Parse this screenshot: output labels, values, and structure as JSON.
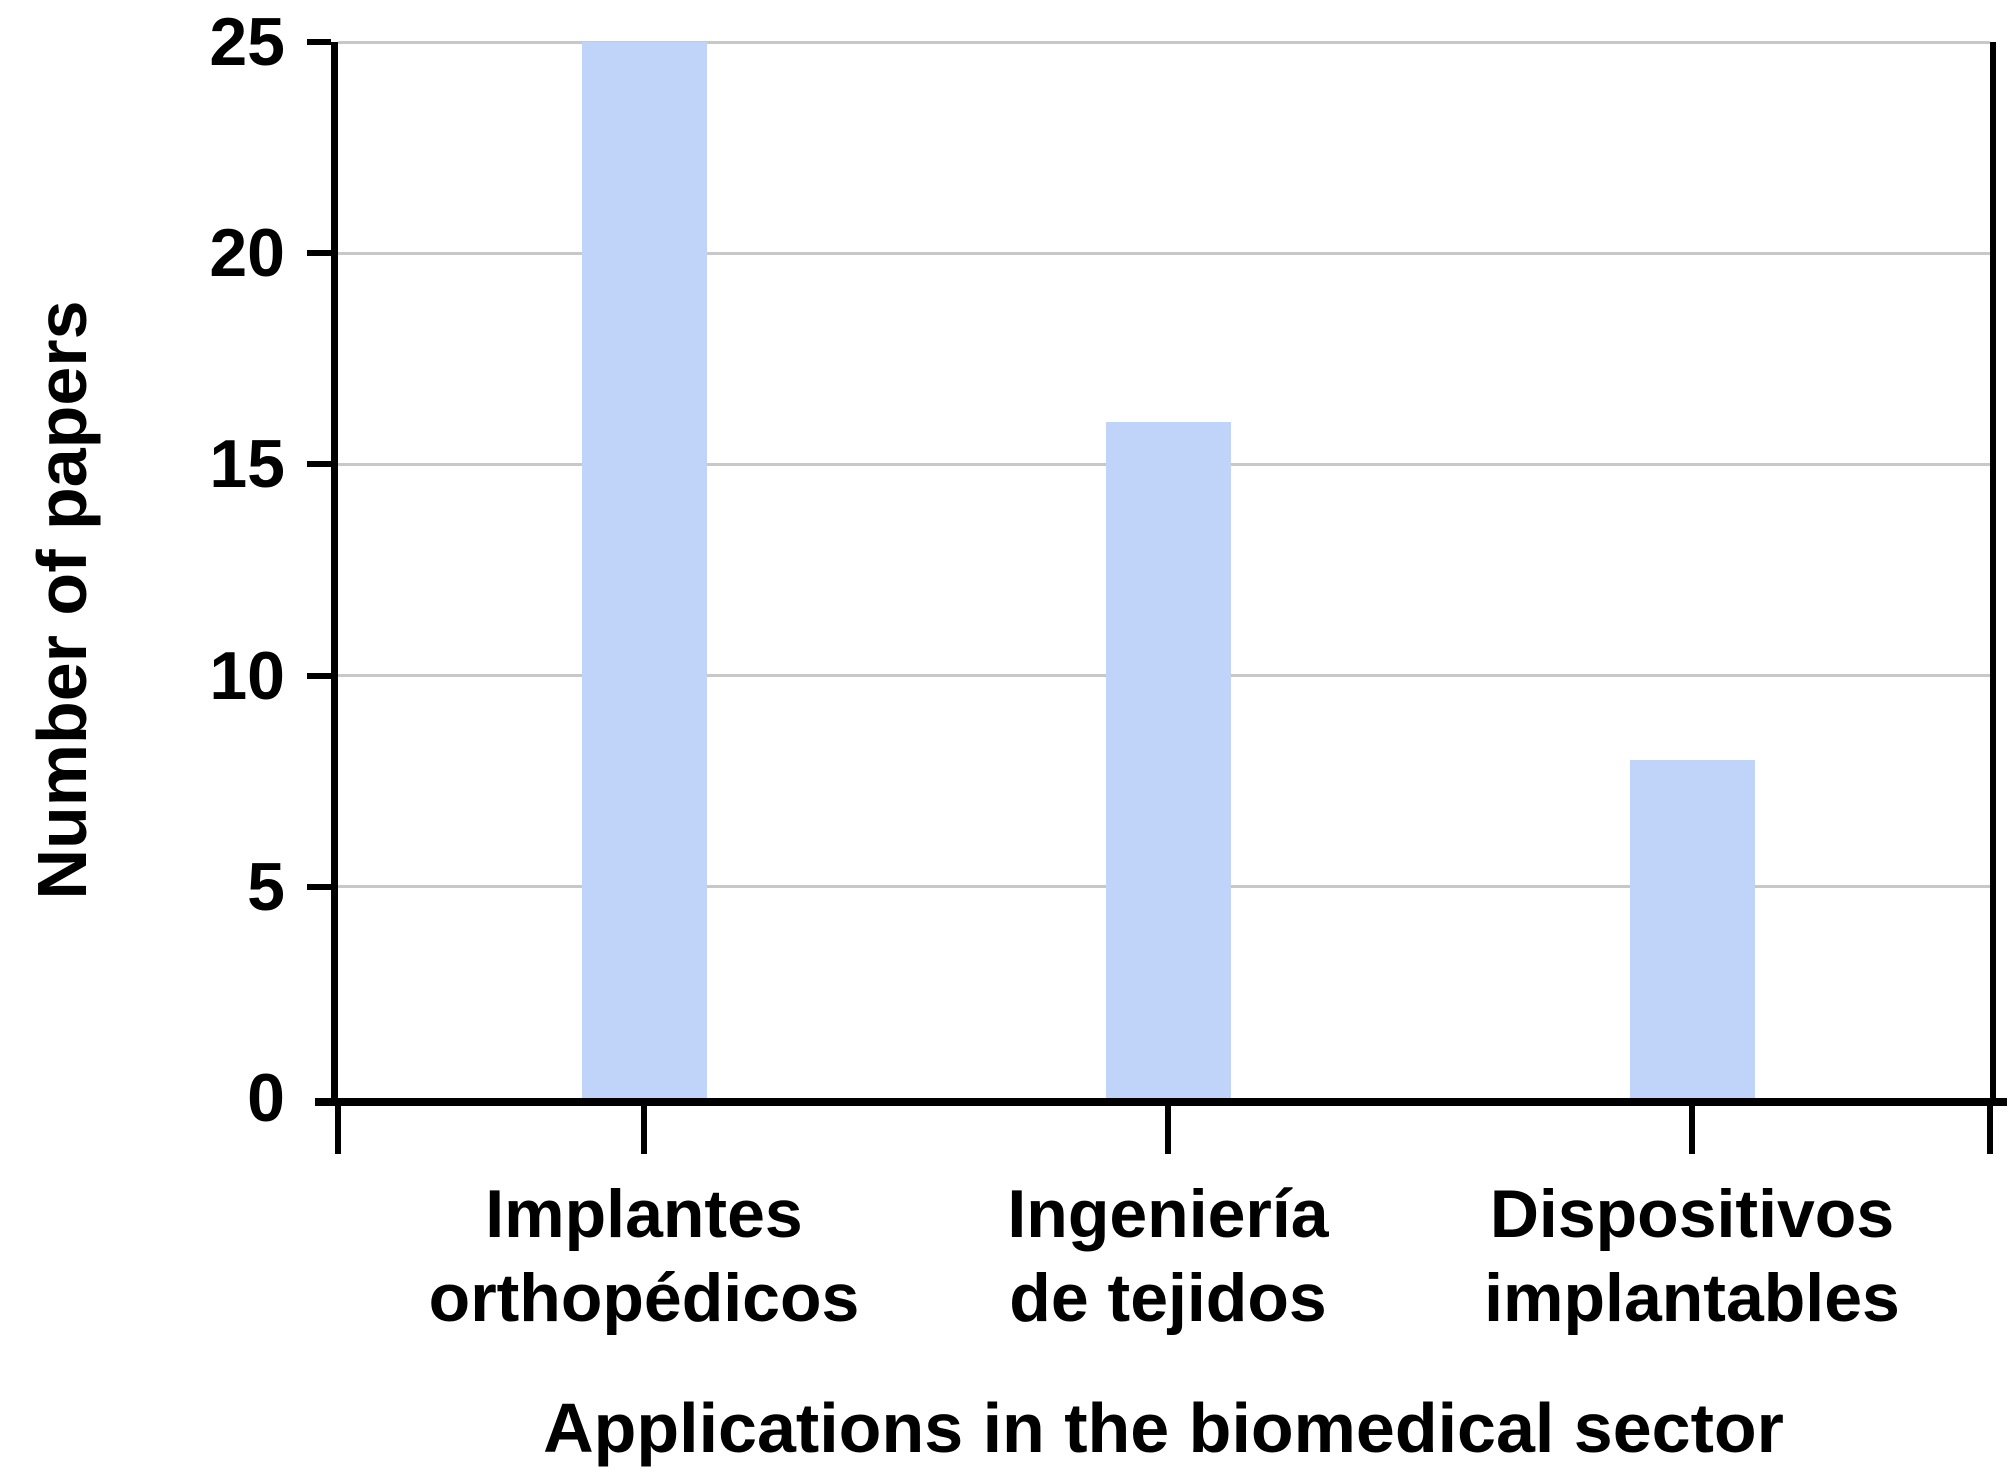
{
  "figure": {
    "background": "#ffffff",
    "text_color": "#000000"
  },
  "chart_data": {
    "type": "bar",
    "categories": [
      "Implantes\northopédicos",
      "Ingeniería\nde tejidos",
      "Dispositivos\nimplantables"
    ],
    "values": [
      25,
      16,
      8
    ],
    "title": "",
    "xlabel": "Applications in the biomedical sector",
    "ylabel": "Number of papers",
    "ylim": [
      0,
      25
    ],
    "yticks": [
      0,
      5,
      10,
      15,
      20,
      25
    ],
    "grid": "horizontal-gridlines-on",
    "legend": "none",
    "bar_color": "#bfd4f8",
    "gridline_color": "#c8c8c8",
    "axis_color": "#000000"
  }
}
